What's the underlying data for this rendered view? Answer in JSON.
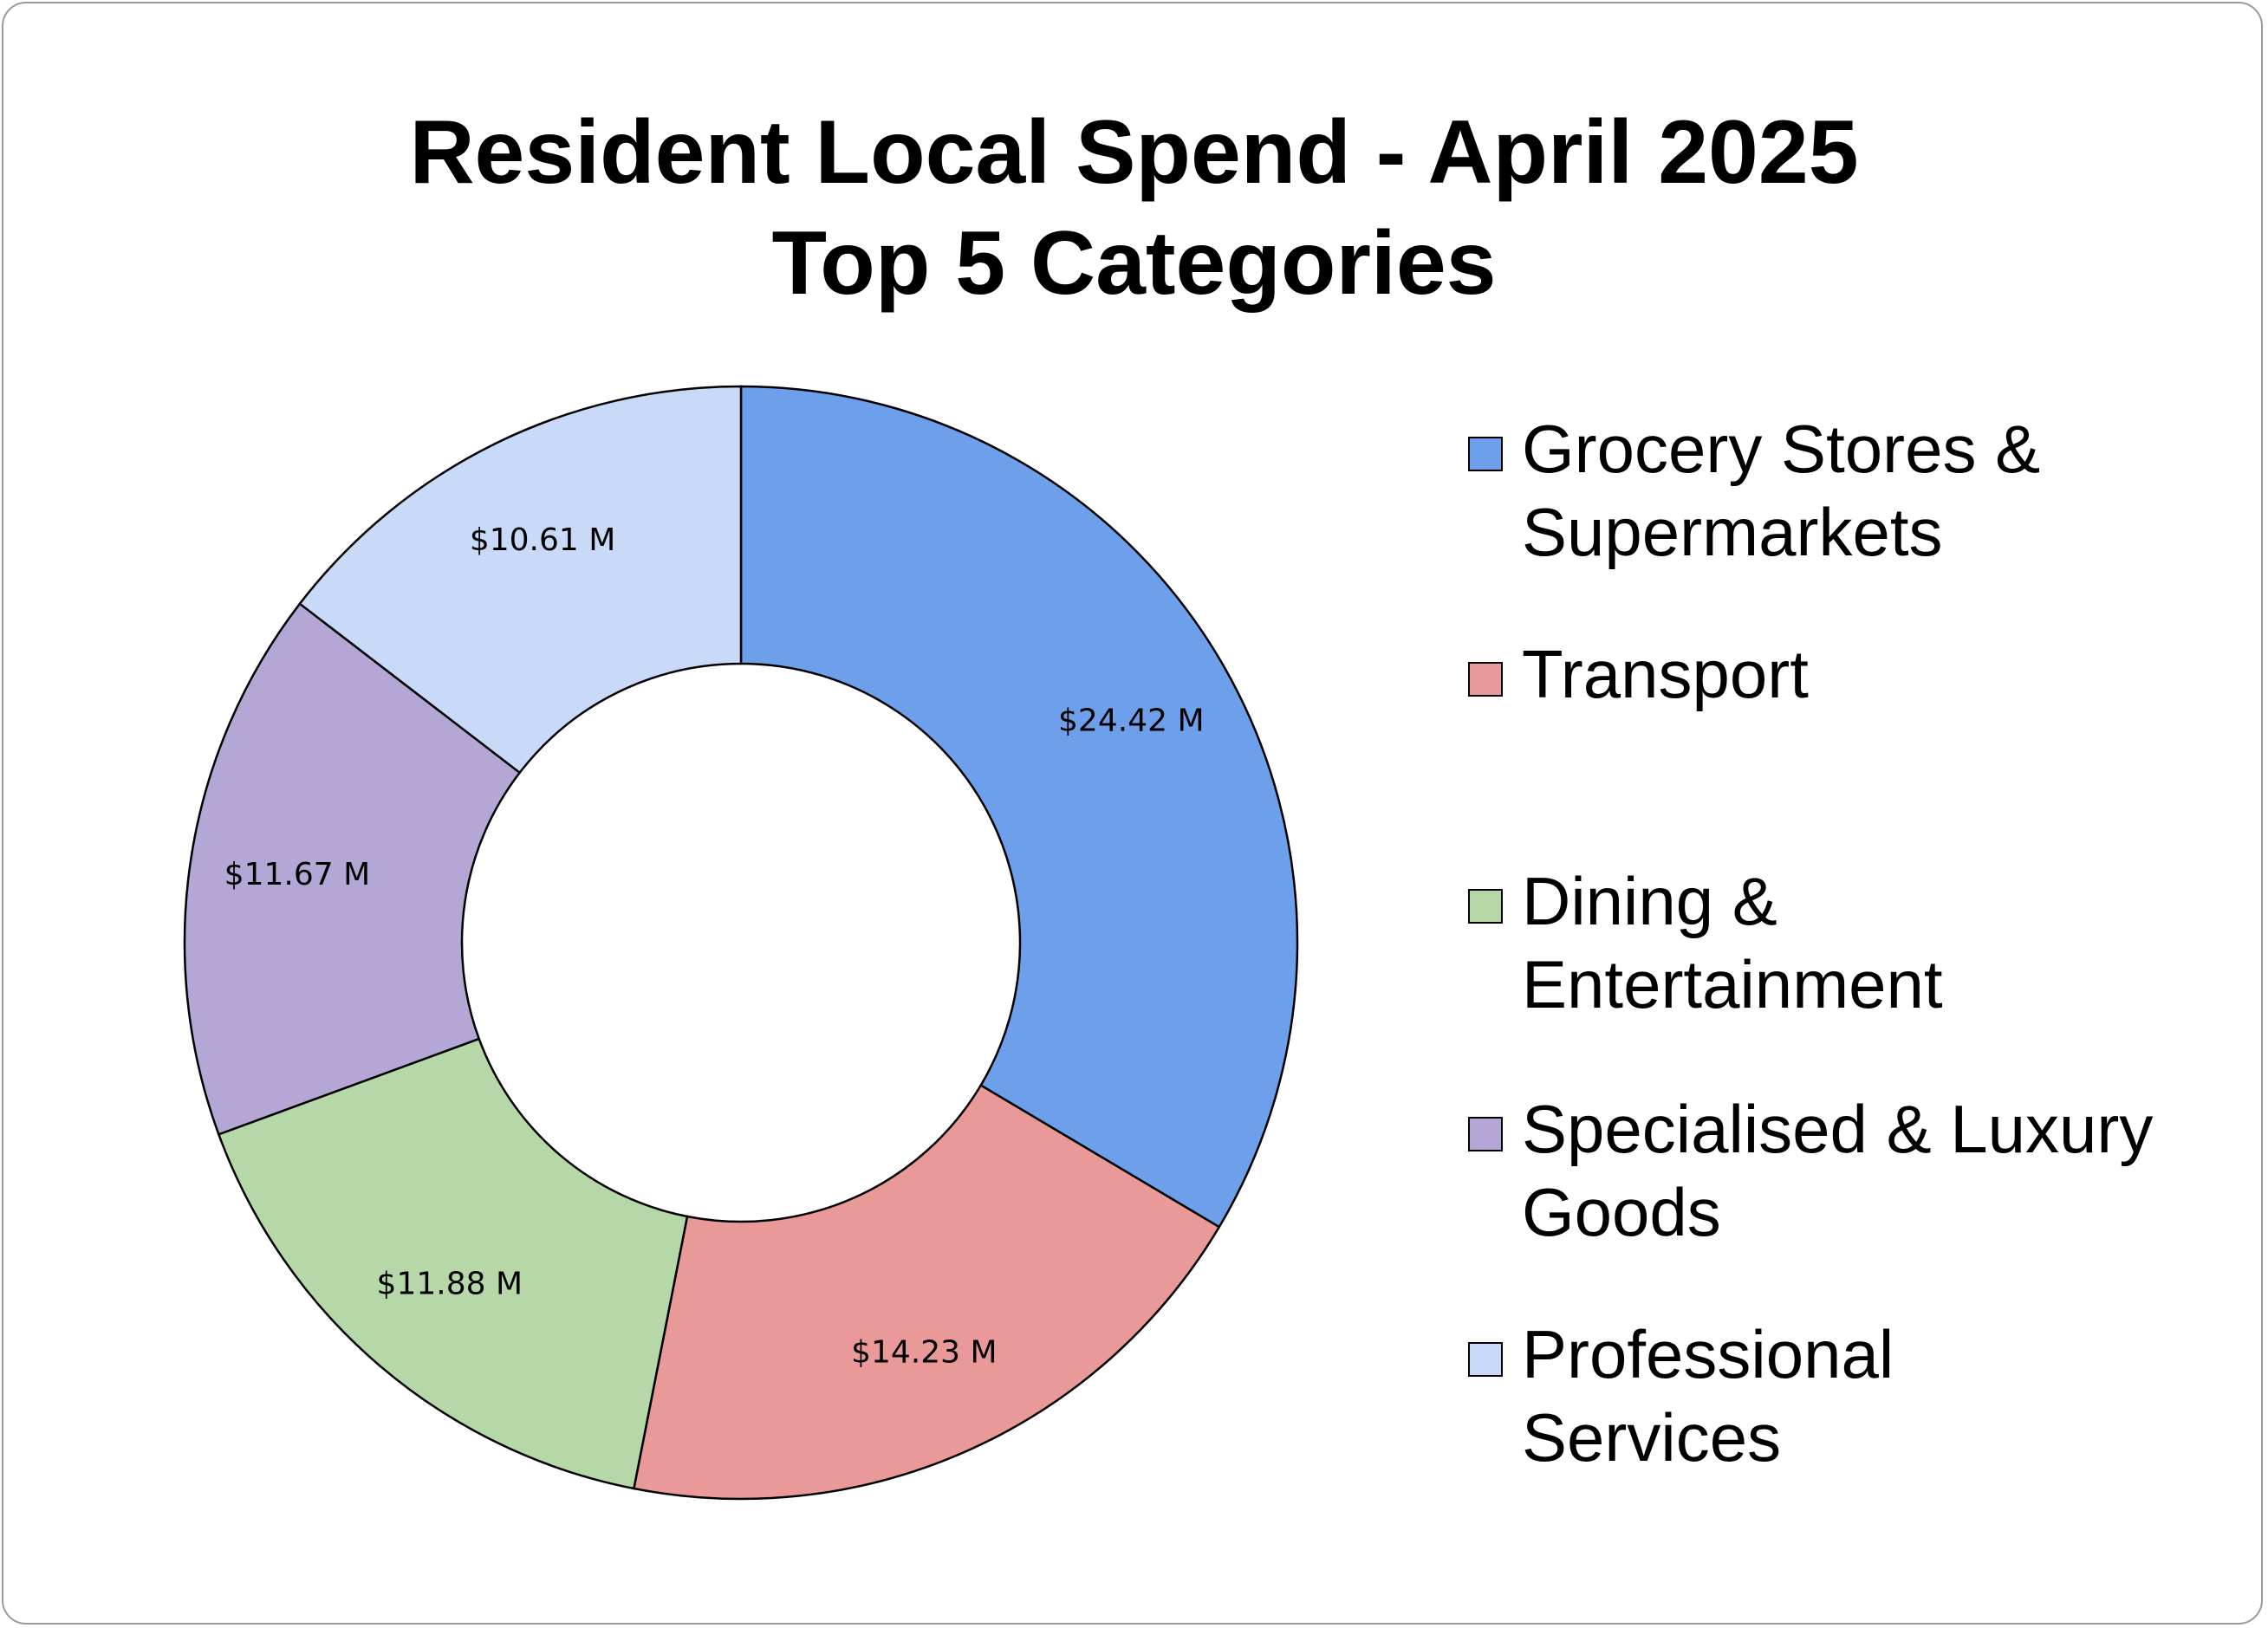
{
  "chart_data": {
    "type": "pie",
    "style": "donut",
    "title_lines": [
      "Resident Local Spend - April 2025",
      "Top 5 Categories"
    ],
    "categories": [
      "Grocery Stores & Supermarkets",
      "Transport",
      "Dining & Entertainment",
      "Specialised & Luxury Goods",
      "Professional Services"
    ],
    "values": [
      24.42,
      14.23,
      11.88,
      11.67,
      10.61
    ],
    "data_labels": [
      "$24.42 M",
      "$14.23 M",
      "$11.88 M",
      "$11.67 M",
      "$10.61 M"
    ],
    "colors": [
      "#6e9fea",
      "#ea9999",
      "#b6d7a8",
      "#b4a7d6",
      "#c9daf8"
    ],
    "legend_position": "right"
  }
}
